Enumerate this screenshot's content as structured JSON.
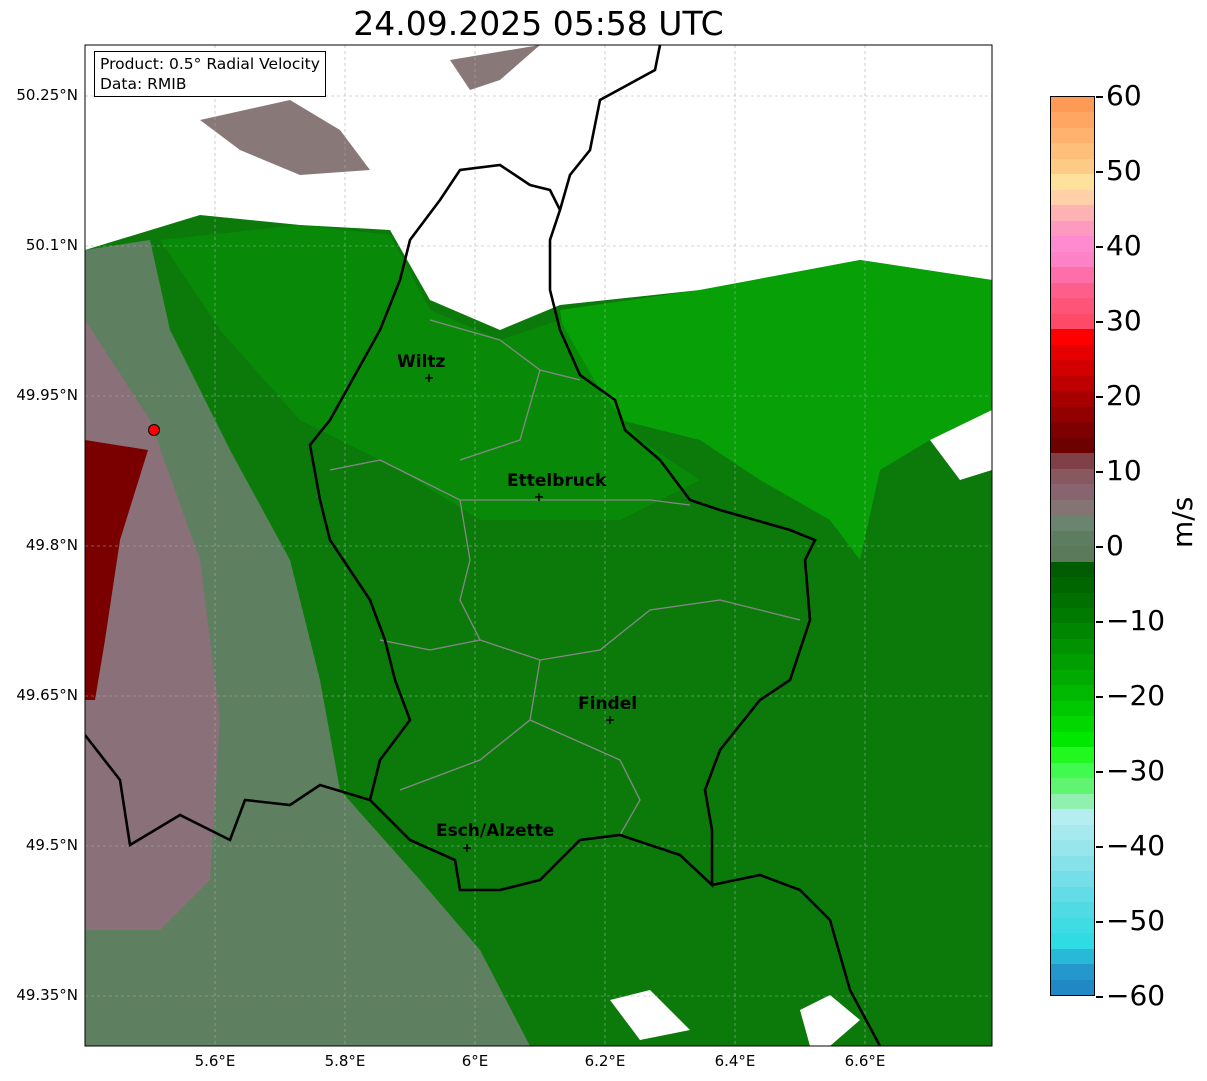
{
  "title": "24.09.2025 05:58 UTC",
  "info": {
    "product": "Product: 0.5° Radial Velocity",
    "data": "Data: RMIB"
  },
  "axes": {
    "lat_ticks": [
      "50.25°N",
      "50.1°N",
      "49.95°N",
      "49.8°N",
      "49.65°N",
      "49.5°N",
      "49.35°N"
    ],
    "lon_ticks": [
      "5.6°E",
      "5.8°E",
      "6°E",
      "6.2°E",
      "6.4°E",
      "6.6°E"
    ]
  },
  "cities": [
    {
      "name": "Wiltz"
    },
    {
      "name": "Ettelbruck"
    },
    {
      "name": "Findel"
    },
    {
      "name": "Esch/Alzette"
    }
  ],
  "colorbar": {
    "unit": "m/s",
    "ticks": [
      "60",
      "50",
      "40",
      "30",
      "20",
      "10",
      "0",
      "−10",
      "−20",
      "−30",
      "−40",
      "−50",
      "−60"
    ],
    "colors": [
      "#fe9a56",
      "#fea662",
      "#feb26e",
      "#febf7a",
      "#fecb86",
      "#fee29c",
      "#fed1a8",
      "#feb2b4",
      "#fe9ac0",
      "#fe8ad0",
      "#fe82c6",
      "#fe6ea8",
      "#fe5e8c",
      "#fe5478",
      "#fe4a68",
      "#fe0000",
      "#e60000",
      "#d20000",
      "#be0000",
      "#a60000",
      "#920000",
      "#7e0000",
      "#6e0000",
      "#804048",
      "#885860",
      "#886470",
      "#847474",
      "#6a8470",
      "#5e7c60",
      "#5a7a5a",
      "#005c00",
      "#006600",
      "#007000",
      "#007a00",
      "#008600",
      "#009200",
      "#009e00",
      "#00aa00",
      "#00b800",
      "#00c800",
      "#00d800",
      "#00e800",
      "#20f820",
      "#40fa50",
      "#60f470",
      "#90f0b0",
      "#b4eef0",
      "#a6eaf0",
      "#96e6ec",
      "#86e2ea",
      "#74dfe8",
      "#62dce6",
      "#50dae4",
      "#40dce4",
      "#30dce4",
      "#28b8d8",
      "#2498cc",
      "#2088c4"
    ]
  }
}
